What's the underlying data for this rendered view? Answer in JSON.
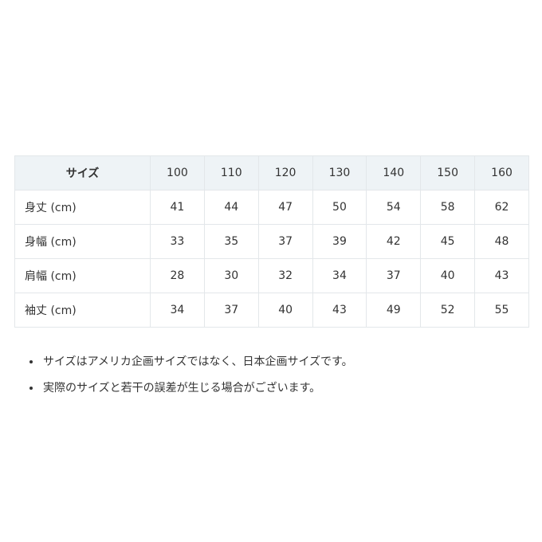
{
  "table": {
    "corner": "サイズ",
    "sizes": [
      "100",
      "110",
      "120",
      "130",
      "140",
      "150",
      "160"
    ],
    "rows": [
      {
        "label": "身丈 (cm)",
        "values": [
          "41",
          "44",
          "47",
          "50",
          "54",
          "58",
          "62"
        ]
      },
      {
        "label": "身幅 (cm)",
        "values": [
          "33",
          "35",
          "37",
          "39",
          "42",
          "45",
          "48"
        ]
      },
      {
        "label": "肩幅 (cm)",
        "values": [
          "28",
          "30",
          "32",
          "34",
          "37",
          "40",
          "43"
        ]
      },
      {
        "label": "袖丈 (cm)",
        "values": [
          "34",
          "37",
          "40",
          "43",
          "49",
          "52",
          "55"
        ]
      }
    ]
  },
  "notes": [
    "サイズはアメリカ企画サイズではなく、日本企画サイズです。",
    "実際のサイズと若干の誤差が生じる場合がございます。"
  ]
}
